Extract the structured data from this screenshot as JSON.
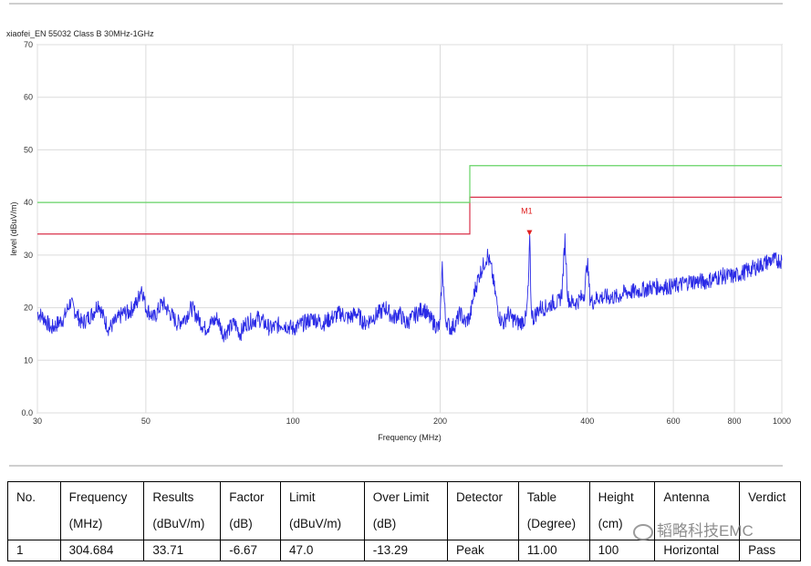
{
  "chart_data": {
    "type": "line",
    "title": "xiaofei_EN 55032 Class B 30MHz-1GHz",
    "xlabel": "Frequency (MHz)",
    "ylabel": "level (dBuV/m)",
    "xscale": "log",
    "xlim": [
      30,
      1000
    ],
    "ylim": [
      0,
      70
    ],
    "grid": true,
    "x_ticks": [
      "30",
      "50",
      "100",
      "200",
      "400",
      "600",
      "800",
      "1000"
    ],
    "y_ticks": [
      "0.0",
      "10",
      "20",
      "30",
      "40",
      "50",
      "60",
      "70"
    ],
    "colors": {
      "measured": "#2a2ae6",
      "limit_qp": "#d9304a",
      "limit_margin": "#66d466",
      "marker": "#e02020"
    },
    "series": [
      {
        "role": "measured",
        "x": [
          30,
          31,
          32,
          33,
          34,
          35,
          36,
          37,
          38,
          39,
          40,
          41,
          42,
          43,
          44,
          45,
          46,
          47,
          48,
          49,
          50,
          52,
          54,
          56,
          58,
          60,
          62,
          64,
          66,
          68,
          70,
          72,
          74,
          76,
          78,
          80,
          85,
          90,
          95,
          100,
          105,
          110,
          115,
          120,
          125,
          130,
          135,
          140,
          145,
          150,
          155,
          160,
          165,
          170,
          175,
          180,
          185,
          190,
          195,
          198,
          200,
          202,
          205,
          210,
          215,
          220,
          225,
          228,
          230,
          235,
          240,
          245,
          250,
          255,
          260,
          265,
          270,
          275,
          280,
          290,
          300,
          303,
          305,
          307,
          310,
          315,
          320,
          330,
          340,
          350,
          355,
          360,
          365,
          370,
          380,
          390,
          395,
          400,
          405,
          410,
          420,
          440,
          460,
          480,
          500,
          550,
          600,
          650,
          700,
          750,
          800,
          850,
          900,
          950,
          1000
        ],
        "y": [
          19,
          18,
          16,
          17,
          18,
          21,
          19,
          17,
          18,
          19,
          21,
          18,
          16,
          17,
          18,
          19,
          19,
          20,
          21,
          24,
          20,
          18,
          21,
          19,
          17,
          18,
          20,
          18,
          16,
          17,
          18,
          15,
          16,
          17,
          15,
          17,
          18,
          16,
          17,
          16,
          17,
          18,
          17,
          18,
          19,
          18,
          19,
          17,
          18,
          19,
          20,
          18,
          19,
          17,
          18,
          19,
          20,
          18,
          17,
          16,
          17,
          28,
          18,
          16,
          17,
          19,
          17,
          18,
          18,
          23,
          26,
          28,
          30,
          27,
          22,
          18,
          17,
          19,
          18,
          17,
          18,
          24,
          33,
          20,
          18,
          19,
          20,
          20,
          21,
          21,
          23,
          33,
          22,
          21,
          21,
          22,
          23,
          29,
          22,
          21,
          22,
          22,
          22,
          23,
          23,
          24,
          24,
          25,
          25,
          26,
          26,
          27,
          28,
          29,
          29
        ]
      }
    ],
    "limits": [
      {
        "role": "limit_qp",
        "segments": [
          [
            30,
            230,
            34
          ],
          [
            230,
            1000,
            41
          ]
        ]
      },
      {
        "role": "limit_margin",
        "segments": [
          [
            30,
            230,
            40
          ],
          [
            230,
            1000,
            47
          ]
        ]
      }
    ],
    "markers": [
      {
        "label": "M1",
        "x": 304.684,
        "y": 33.71
      }
    ]
  },
  "table": {
    "headers": [
      [
        "No.",
        ""
      ],
      [
        "Frequency",
        "(MHz)"
      ],
      [
        "Results",
        "(dBuV/m)"
      ],
      [
        "Factor",
        "(dB)"
      ],
      [
        "Limit",
        "(dBuV/m)"
      ],
      [
        "Over Limit",
        "(dB)"
      ],
      [
        "Detector",
        ""
      ],
      [
        "Table",
        "(Degree)"
      ],
      [
        "Height",
        "(cm)"
      ],
      [
        "Antenna",
        ""
      ],
      [
        "Verdict",
        ""
      ]
    ],
    "rows": [
      [
        "1",
        "304.684",
        "33.71",
        "-6.67",
        "47.0",
        "-13.29",
        "Peak",
        "11.00",
        "100",
        "Horizontal",
        "Pass"
      ]
    ]
  },
  "watermark": {
    "text": "韬略科技EMC"
  }
}
